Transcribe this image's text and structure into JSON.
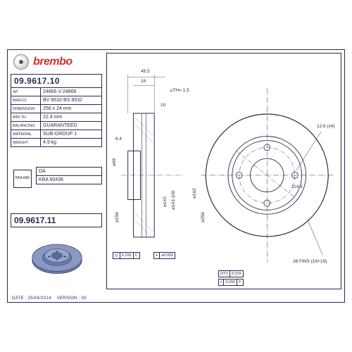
{
  "brand": "brembo",
  "part_number_main": "09.9617.10",
  "part_number_alt": "09.9617.11",
  "specs": [
    {
      "label": "AP",
      "value": "24866 V-24866"
    },
    {
      "label": "BRECO",
      "value": "BV 8532-BS 8532"
    },
    {
      "label": "DIMENSION",
      "value": "256 x 24 mm"
    },
    {
      "label": "MIN TH",
      "value": "22.4 mm"
    },
    {
      "label": "BALANCING",
      "value": "GUARANTEED"
    },
    {
      "label": "MATERIAL",
      "value": "SUB-GROUP 1"
    },
    {
      "label": "WEIGHT",
      "value": "4.9 kg"
    }
  ],
  "approval_rows": [
    {
      "label": "",
      "value": "DA"
    },
    {
      "label": "",
      "value": "KBA 60436"
    }
  ],
  "cert_label": "KBA\nABE",
  "footer_date_label": "DATE :",
  "footer_date": "25/04/2014",
  "footer_version_label": "VERSION :",
  "footer_version": "00",
  "drawing": {
    "side_view": {
      "dims_top": [
        "45.5",
        "24"
      ],
      "th_note": "⊿TH= 1.5",
      "dim_right": "10",
      "dim_left": "6.4",
      "diameters": [
        "⌀69",
        "⌀156",
        "⌀143",
        "⌀143.100"
      ],
      "gd_t": [
        {
          "sym": "◎",
          "tol": "0.100",
          "datum": "C"
        },
        {
          "sym": "⌖",
          "tol": "⌀0.050"
        }
      ]
    },
    "front_view": {
      "hole_note": "12.6 (x4)",
      "pcd": "114.3",
      "diameters": [
        "⌀162",
        "⌀256"
      ],
      "fins_note": "38 FINS (19+19)",
      "gd_t": [
        {
          "sym": "DTV",
          "tol": "0.015"
        },
        {
          "sym": "⫽",
          "tol": "0.050",
          "datum": "F"
        }
      ]
    },
    "colors": {
      "line": "#2a2a4a",
      "accent": "#d32f2f",
      "hatch": "#8899bb",
      "rotor_fill": "#6a7aa8",
      "rotor_edge": "#3a4a78"
    }
  }
}
